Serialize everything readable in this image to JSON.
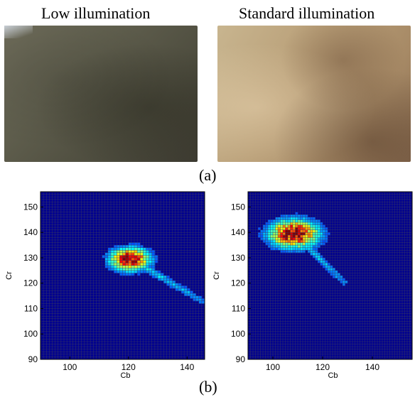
{
  "figure": {
    "panel_a": {
      "caption": "(a)",
      "images": [
        {
          "label": "Low illumination"
        },
        {
          "label": "Standard illumination"
        }
      ]
    },
    "panel_b": {
      "caption": "(b)"
    }
  },
  "chart_data": [
    {
      "type": "heatmap",
      "xlabel": "Cb",
      "ylabel": "Cr",
      "xlim": [
        90,
        146
      ],
      "ylim": [
        90,
        156
      ],
      "xticks": [
        100,
        120,
        140
      ],
      "yticks": [
        90,
        100,
        110,
        120,
        130,
        140,
        150
      ],
      "grid": true,
      "background_color": "#00008f",
      "hotspot_cb": 120,
      "hotspot_cr": 129,
      "spread_cb": 6,
      "spread_cr": 4,
      "tail_end_cb": 144,
      "tail_end_cr": 113
    },
    {
      "type": "heatmap",
      "xlabel": "Cb",
      "ylabel": "Cr",
      "xlim": [
        90,
        156
      ],
      "ylim": [
        90,
        156
      ],
      "xticks": [
        100,
        120,
        140
      ],
      "yticks": [
        90,
        100,
        110,
        120,
        130,
        140,
        150
      ],
      "grid": true,
      "background_color": "#00008f",
      "hotspot_cb": 108,
      "hotspot_cr": 139,
      "spread_cb": 9,
      "spread_cr": 5,
      "tail_end_cb": 128,
      "tail_end_cr": 120
    }
  ]
}
